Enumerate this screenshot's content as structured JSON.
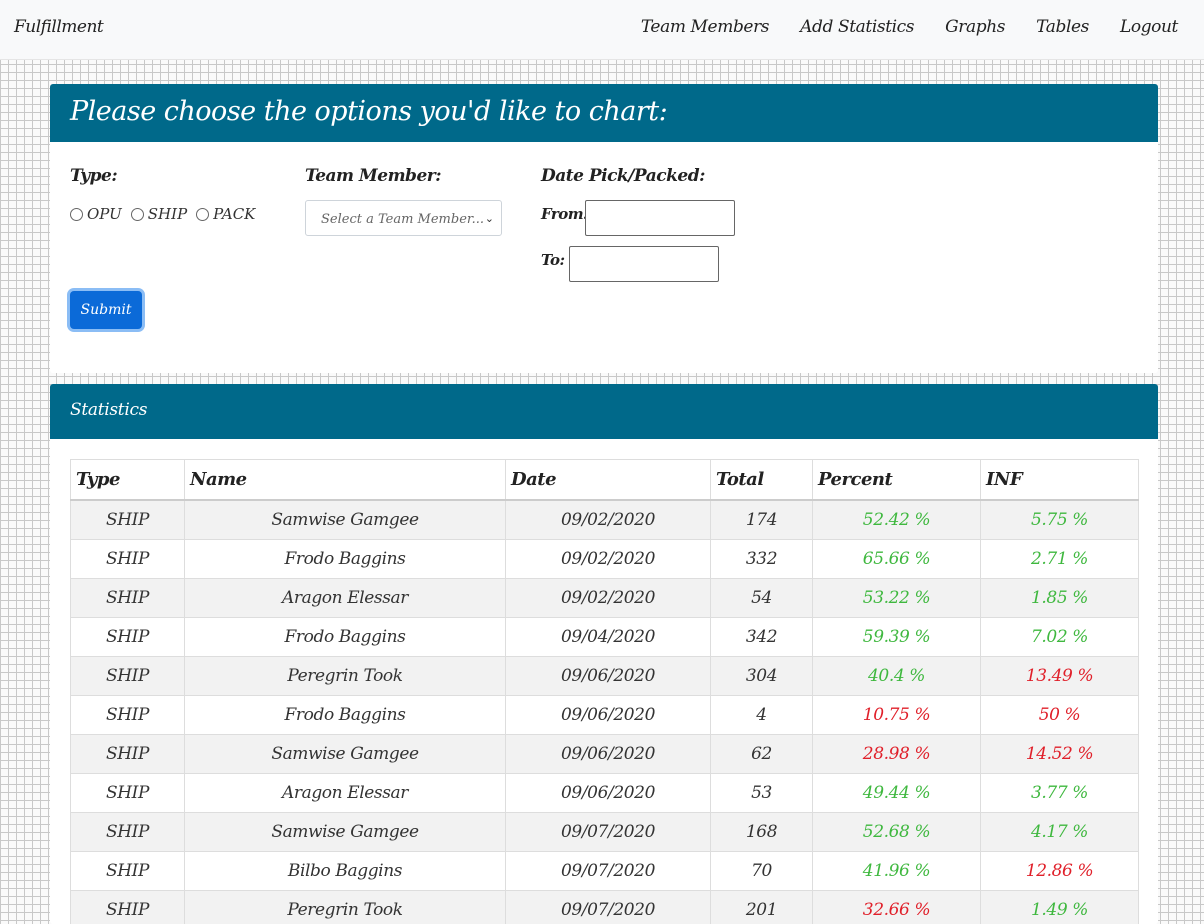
{
  "navbar": {
    "brand": "Fulfillment",
    "links": [
      "Team Members",
      "Add Statistics",
      "Graphs",
      "Tables",
      "Logout"
    ]
  },
  "options": {
    "title": "Please choose the options you'd like to chart:",
    "type_label": "Type:",
    "type_options": [
      "OPU",
      "SHIP",
      "PACK"
    ],
    "team_label": "Team Member:",
    "team_placeholder": "Select a Team Member...",
    "date_label": "Date Pick/Packed:",
    "from_label": "From:",
    "to_label": "To:",
    "submit_label": "Submit"
  },
  "stats": {
    "title": "Statistics",
    "headers": [
      "Type",
      "Name",
      "Date",
      "Total",
      "Percent",
      "INF"
    ],
    "rows": [
      {
        "type": "SHIP",
        "name": "Samwise Gamgee",
        "date": "09/02/2020",
        "total": "174",
        "percent": "52.42 %",
        "inf": "5.75 %",
        "percent_status": "good",
        "inf_status": "good"
      },
      {
        "type": "SHIP",
        "name": "Frodo Baggins",
        "date": "09/02/2020",
        "total": "332",
        "percent": "65.66 %",
        "inf": "2.71 %",
        "percent_status": "good",
        "inf_status": "good"
      },
      {
        "type": "SHIP",
        "name": "Aragon Elessar",
        "date": "09/02/2020",
        "total": "54",
        "percent": "53.22 %",
        "inf": "1.85 %",
        "percent_status": "good",
        "inf_status": "good"
      },
      {
        "type": "SHIP",
        "name": "Frodo Baggins",
        "date": "09/04/2020",
        "total": "342",
        "percent": "59.39 %",
        "inf": "7.02 %",
        "percent_status": "good",
        "inf_status": "good"
      },
      {
        "type": "SHIP",
        "name": "Peregrin Took",
        "date": "09/06/2020",
        "total": "304",
        "percent": "40.4 %",
        "inf": "13.49 %",
        "percent_status": "good",
        "inf_status": "bad"
      },
      {
        "type": "SHIP",
        "name": "Frodo Baggins",
        "date": "09/06/2020",
        "total": "4",
        "percent": "10.75 %",
        "inf": "50 %",
        "percent_status": "bad",
        "inf_status": "bad"
      },
      {
        "type": "SHIP",
        "name": "Samwise Gamgee",
        "date": "09/06/2020",
        "total": "62",
        "percent": "28.98 %",
        "inf": "14.52 %",
        "percent_status": "bad",
        "inf_status": "bad"
      },
      {
        "type": "SHIP",
        "name": "Aragon Elessar",
        "date": "09/06/2020",
        "total": "53",
        "percent": "49.44 %",
        "inf": "3.77 %",
        "percent_status": "good",
        "inf_status": "good"
      },
      {
        "type": "SHIP",
        "name": "Samwise Gamgee",
        "date": "09/07/2020",
        "total": "168",
        "percent": "52.68 %",
        "inf": "4.17 %",
        "percent_status": "good",
        "inf_status": "good"
      },
      {
        "type": "SHIP",
        "name": "Bilbo Baggins",
        "date": "09/07/2020",
        "total": "70",
        "percent": "41.96 %",
        "inf": "12.86 %",
        "percent_status": "good",
        "inf_status": "bad"
      },
      {
        "type": "SHIP",
        "name": "Peregrin Took",
        "date": "09/07/2020",
        "total": "201",
        "percent": "32.66 %",
        "inf": "1.49 %",
        "percent_status": "bad",
        "inf_status": "good"
      }
    ]
  },
  "colors": {
    "header_bg": "#00698a",
    "good": "#3fb83f",
    "bad": "#e0202a",
    "submit_bg": "#0b6ad8"
  }
}
